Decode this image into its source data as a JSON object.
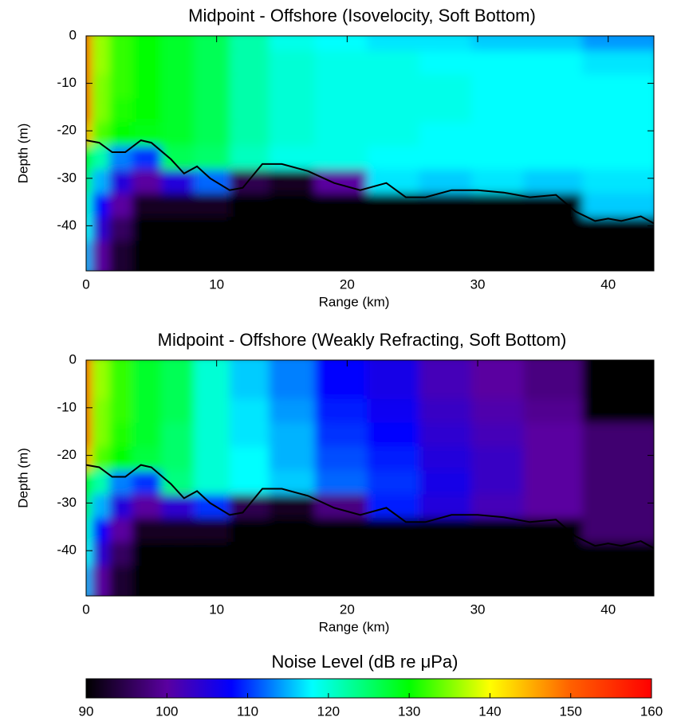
{
  "chart_data": [
    {
      "type": "heatmap",
      "title": "Midpoint - Offshore (Isovelocity, Soft Bottom)",
      "xlabel": "Range (km)",
      "ylabel": "Depth (m)",
      "xlim": [
        0,
        43.5
      ],
      "ylim": [
        -49.5,
        0
      ],
      "xticks": [
        0,
        10,
        20,
        30,
        40
      ],
      "yticks": [
        0,
        -10,
        -20,
        -30,
        -40
      ],
      "x": [
        0.3,
        1.5,
        3,
        5,
        7.5,
        10,
        13,
        16,
        20,
        24,
        28,
        32,
        36,
        41
      ],
      "y": [
        -2,
        -7,
        -12,
        -17,
        -22,
        -27,
        -32,
        -37,
        -42,
        -47
      ],
      "z": [
        [
          150,
          136,
          132,
          130,
          128,
          126,
          122,
          119,
          118,
          117,
          117,
          116,
          116,
          114
        ],
        [
          150,
          136,
          132,
          130,
          128,
          126,
          122,
          120,
          119,
          119,
          118,
          118,
          118,
          117
        ],
        [
          150,
          135,
          132,
          130,
          128,
          126,
          122,
          120,
          119,
          119,
          119,
          118,
          118,
          118
        ],
        [
          150,
          135,
          131,
          130,
          128,
          126,
          122,
          120,
          119,
          119,
          119,
          118,
          118,
          118
        ],
        [
          145,
          133,
          130,
          129,
          128,
          126,
          122,
          120,
          119,
          119,
          118,
          118,
          118,
          118
        ],
        [
          130,
          122,
          113,
          110,
          126,
          125,
          121,
          119,
          119,
          118,
          118,
          118,
          118,
          118
        ],
        [
          125,
          115,
          105,
          100,
          105,
          112,
          95,
          92,
          100,
          117,
          116,
          117,
          116,
          117
        ],
        [
          120,
          108,
          100,
          92,
          92,
          92,
          90,
          90,
          90,
          90,
          90,
          90,
          90,
          116
        ],
        [
          118,
          104,
          96,
          90,
          90,
          90,
          90,
          90,
          90,
          90,
          90,
          90,
          90,
          90
        ],
        [
          115,
          100,
          93,
          90,
          90,
          90,
          90,
          90,
          90,
          90,
          90,
          90,
          90,
          90
        ]
      ],
      "boundary_x": [
        0,
        1,
        2,
        3,
        4.2,
        5,
        6.5,
        7.5,
        8.5,
        9.5,
        11,
        12,
        13.5,
        15,
        17,
        19,
        21,
        23,
        24.5,
        26,
        28,
        30,
        32,
        34,
        36,
        37.5,
        39,
        40,
        41,
        42.5,
        43.5
      ],
      "boundary_y": [
        -22,
        -22.5,
        -24.5,
        -24.5,
        -22,
        -22.5,
        -26,
        -29,
        -27.5,
        -30,
        -32.5,
        -32,
        -27,
        -27,
        -28.5,
        -31,
        -32.5,
        -31,
        -34,
        -34,
        -32.5,
        -32.5,
        -33,
        -34,
        -33.5,
        -37,
        -39,
        -38.5,
        -39,
        -38,
        -39.5
      ]
    },
    {
      "type": "heatmap",
      "title": "Midpoint - Offshore (Weakly Refracting, Soft Bottom)",
      "xlabel": "Range (km)",
      "ylabel": "Depth (m)",
      "xlim": [
        0,
        43.5
      ],
      "ylim": [
        -49.5,
        0
      ],
      "xticks": [
        0,
        10,
        20,
        30,
        40
      ],
      "yticks": [
        0,
        -10,
        -20,
        -30,
        -40
      ],
      "x": [
        0.3,
        1.5,
        3,
        5,
        7.5,
        10,
        13,
        16,
        20,
        24,
        28,
        32,
        36,
        41
      ],
      "y": [
        -2,
        -7,
        -12,
        -17,
        -22,
        -27,
        -32,
        -37,
        -42,
        -47
      ],
      "z": [
        [
          150,
          136,
          132,
          128,
          126,
          120,
          116,
          113,
          108,
          106,
          102,
          100,
          98,
          90
        ],
        [
          150,
          136,
          132,
          128,
          126,
          120,
          116,
          113,
          108,
          106,
          102,
          100,
          98,
          90
        ],
        [
          150,
          135,
          132,
          128,
          126,
          120,
          117,
          114,
          109,
          107,
          103,
          101,
          99,
          90
        ],
        [
          150,
          135,
          131,
          128,
          125,
          120,
          117,
          115,
          110,
          108,
          104,
          102,
          100,
          97
        ],
        [
          145,
          133,
          130,
          127,
          125,
          120,
          118,
          115,
          111,
          109,
          105,
          103,
          100,
          97
        ],
        [
          130,
          122,
          113,
          110,
          124,
          120,
          118,
          116,
          112,
          110,
          106,
          103,
          100,
          97
        ],
        [
          125,
          115,
          105,
          100,
          104,
          110,
          95,
          92,
          98,
          109,
          105,
          102,
          100,
          97
        ],
        [
          120,
          108,
          100,
          92,
          92,
          92,
          90,
          90,
          90,
          90,
          90,
          90,
          90,
          97
        ],
        [
          118,
          104,
          96,
          90,
          90,
          90,
          90,
          90,
          90,
          90,
          90,
          90,
          90,
          90
        ],
        [
          115,
          100,
          93,
          90,
          90,
          90,
          90,
          90,
          90,
          90,
          90,
          90,
          90,
          90
        ]
      ],
      "boundary_x": [
        0,
        1,
        2,
        3,
        4.2,
        5,
        6.5,
        7.5,
        8.5,
        9.5,
        11,
        12,
        13.5,
        15,
        17,
        19,
        21,
        23,
        24.5,
        26,
        28,
        30,
        32,
        34,
        36,
        37.5,
        39,
        40,
        41,
        42.5,
        43.5
      ],
      "boundary_y": [
        -22,
        -22.5,
        -24.5,
        -24.5,
        -22,
        -22.5,
        -26,
        -29,
        -27.5,
        -30,
        -32.5,
        -32,
        -27,
        -27,
        -28.5,
        -31,
        -32.5,
        -31,
        -34,
        -34,
        -32.5,
        -32.5,
        -33,
        -34,
        -33.5,
        -37,
        -39,
        -38.5,
        -39,
        -38,
        -39.5
      ]
    },
    {
      "type": "colorbar",
      "title": "Noise Level (dB re μPa)",
      "xlim": [
        90,
        160
      ],
      "xticks": [
        90,
        100,
        110,
        120,
        130,
        140,
        150,
        160
      ],
      "colormap": [
        {
          "value": 90,
          "color": "#000000"
        },
        {
          "value": 100,
          "color": "#5a00a0"
        },
        {
          "value": 108,
          "color": "#0000ff"
        },
        {
          "value": 118,
          "color": "#00ffff"
        },
        {
          "value": 130,
          "color": "#00ff00"
        },
        {
          "value": 140,
          "color": "#ffff00"
        },
        {
          "value": 150,
          "color": "#ff6000"
        },
        {
          "value": 160,
          "color": "#ff0000"
        }
      ]
    }
  ]
}
